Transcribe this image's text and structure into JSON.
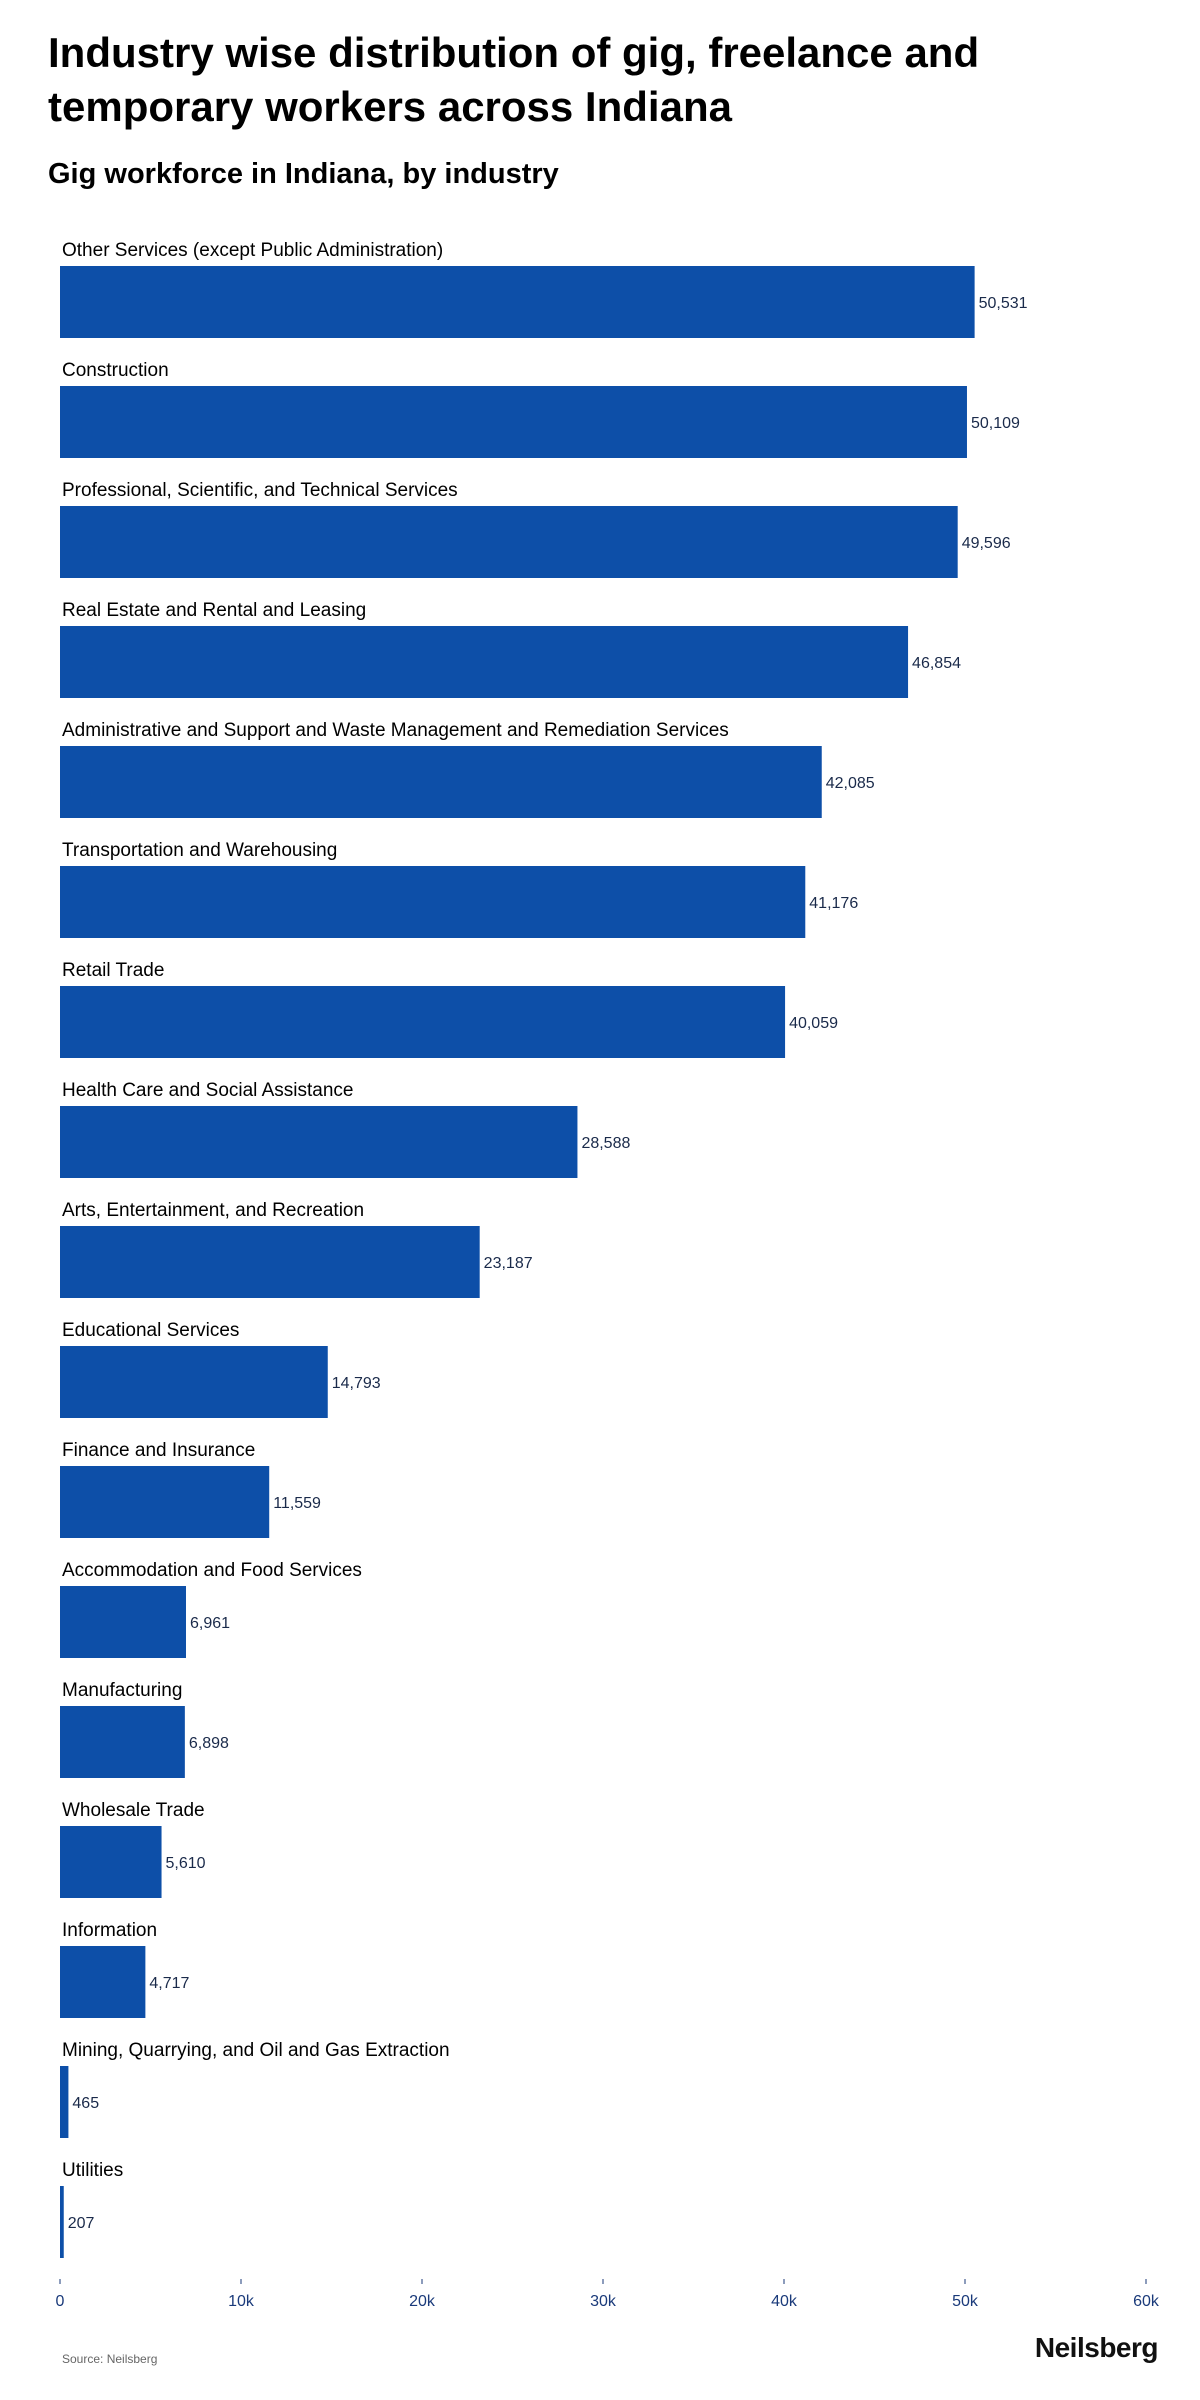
{
  "title": "Industry wise distribution of gig, freelance and temporary workers across Indiana",
  "subtitle": "Gig workforce in Indiana, by industry",
  "source": "Source: Neilsberg",
  "logo": "Neilsberg",
  "colors": {
    "bar": "#0d4fa8",
    "tick": "#1a3a7a"
  },
  "chart_data": {
    "type": "bar",
    "orientation": "horizontal",
    "categories": [
      "Other Services (except Public Administration)",
      "Construction",
      "Professional, Scientific, and Technical Services",
      "Real Estate and Rental and Leasing",
      "Administrative and Support and Waste Management and Remediation Services",
      "Transportation and Warehousing",
      "Retail Trade",
      "Health Care and Social Assistance",
      "Arts, Entertainment, and Recreation",
      "Educational Services",
      "Finance and Insurance",
      "Accommodation and Food Services",
      "Manufacturing",
      "Wholesale Trade",
      "Information",
      "Mining, Quarrying, and Oil and Gas Extraction",
      "Utilities"
    ],
    "values": [
      50531,
      50109,
      49596,
      46854,
      42085,
      41176,
      40059,
      28588,
      23187,
      14793,
      11559,
      6961,
      6898,
      5610,
      4717,
      465,
      207
    ],
    "value_labels": [
      "50,531",
      "50,109",
      "49,596",
      "46,854",
      "42,085",
      "41,176",
      "40,059",
      "28,588",
      "23,187",
      "14,793",
      "11,559",
      "6,961",
      "6,898",
      "5,610",
      "4,717",
      "465",
      "207"
    ],
    "xlim": [
      0,
      60000
    ],
    "xticks": [
      0,
      10000,
      20000,
      30000,
      40000,
      50000,
      60000
    ],
    "xtick_labels": [
      "0",
      "10k",
      "20k",
      "30k",
      "40k",
      "50k",
      "60k"
    ],
    "grid": false,
    "legend": "none"
  }
}
